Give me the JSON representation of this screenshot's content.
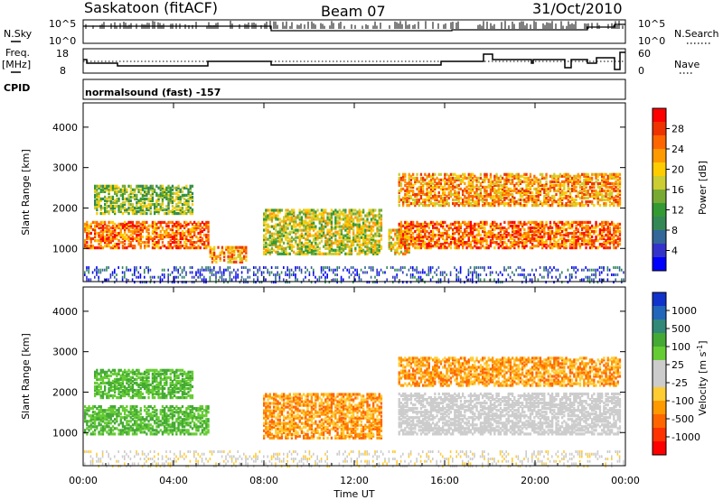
{
  "header": {
    "station": "Saskatoon (fitACF)",
    "beam": "Beam 07",
    "date": "31/Oct/2010"
  },
  "status_panels": {
    "nsky_label": "N.Sky",
    "nsky_ticks": [
      "10^5",
      "10^0"
    ],
    "nsearch_label": "N.Search",
    "nsearch_ticks": [
      "10^5",
      "10^0"
    ],
    "freq_label_1": "Freq.",
    "freq_label_2": "[MHz]",
    "freq_ticks": [
      "18",
      "8"
    ],
    "nave_label": "Nave",
    "nave_ticks": [
      "60",
      "0"
    ],
    "cpid_label": "CPID",
    "cpid_value": "normalsound (fast) -157"
  },
  "chart_data": [
    {
      "type": "heatmap",
      "panel": "power",
      "ylabel": "Slant Range [km]",
      "ylim": [
        180,
        4600
      ],
      "y_ticks": [
        "4000",
        "3000",
        "2000",
        "1000"
      ],
      "x_ticks": [
        "00:00",
        "04:00",
        "08:00",
        "12:00",
        "16:00",
        "20:00",
        "00:00"
      ],
      "colorbar": {
        "label": "Power [dB]",
        "ticks": [
          "28",
          "24",
          "20",
          "16",
          "12",
          "8",
          "4"
        ],
        "colors": [
          "#ff0000",
          "#ee3300",
          "#ff6600",
          "#ff9900",
          "#ffcc00",
          "#cccc33",
          "#77aa33",
          "#339933",
          "#338855",
          "#336699",
          "#3333cc",
          "#0000ff"
        ]
      }
    },
    {
      "type": "heatmap",
      "panel": "velocity",
      "ylabel": "Slant Range [km]",
      "ylim": [
        180,
        4600
      ],
      "y_ticks": [
        "4000",
        "3000",
        "2000",
        "1000"
      ],
      "x_ticks": [
        "00:00",
        "04:00",
        "08:00",
        "12:00",
        "16:00",
        "20:00",
        "00:00"
      ],
      "xlabel": "Time UT",
      "colorbar": {
        "label": "Velocity [m s",
        "label_sup": "-1",
        "label_end": "]",
        "ticks": [
          "1000",
          "500",
          "100",
          "25",
          "-25",
          "-100",
          "-500",
          "-1000"
        ],
        "colors": [
          "#1133cc",
          "#2266bb",
          "#338877",
          "#44aa33",
          "#66cc33",
          "#cccccc",
          "#cccccc",
          "#ffcc33",
          "#ff9900",
          "#ff6600",
          "#ff3300",
          "#ff0000"
        ]
      }
    }
  ]
}
